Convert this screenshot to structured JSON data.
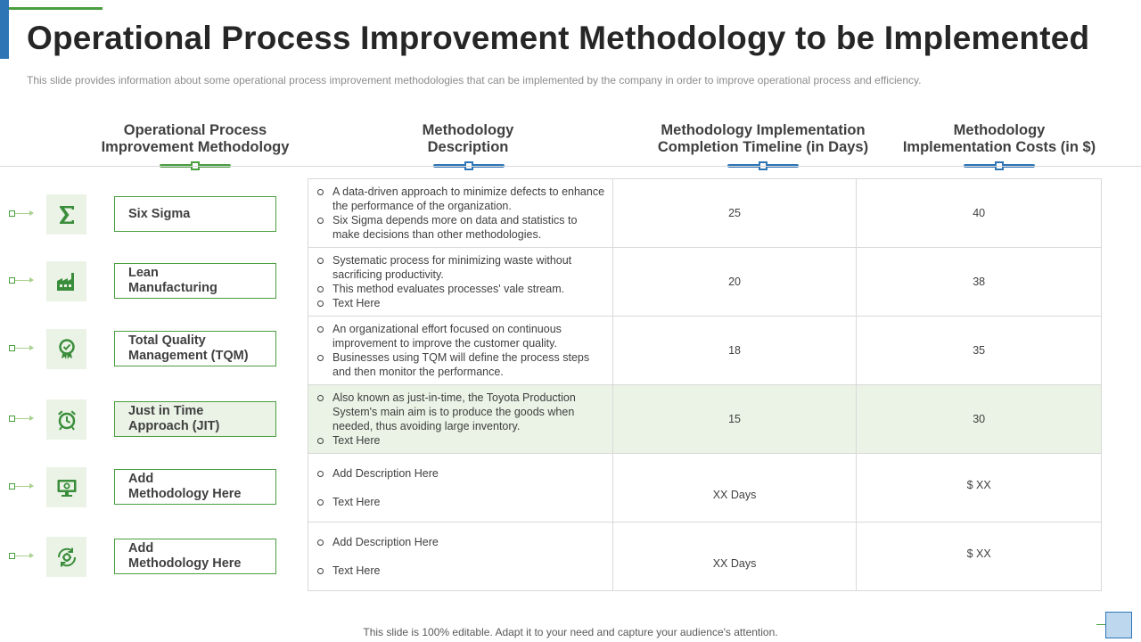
{
  "title": "Operational Process Improvement Methodology to be Implemented",
  "subtitle": "This slide provides  information  about  some operational  process improvement  methodologies that can be implemented  by the company  in order to improve  operational  process and efficiency.",
  "columns": [
    "Operational Process Improvement Methodology",
    "Methodology Description",
    "Methodology Implementation Completion Timeline (in Days)",
    "Methodology Implementation Costs  (in $)"
  ],
  "rows": [
    {
      "icon": "sigma-icon",
      "method": "Six Sigma",
      "description": [
        "A data-driven  approach to minimize defects to enhance the performance  of the organization.",
        "Six Sigma depends more on data and statistics to make decisions than other methodologies."
      ],
      "timeline": "25",
      "cost": "40"
    },
    {
      "icon": "factory-icon",
      "method": "Lean\nManufacturing",
      "description": [
        "Systematic process for minimizing waste without sacrificing productivity.",
        "This method evaluates processes' vale stream.",
        "Text Here"
      ],
      "timeline": "20",
      "cost": "38"
    },
    {
      "icon": "quality-badge-icon",
      "method": "Total Quality\nManagement (TQM)",
      "description": [
        "An organizational  effort  focused on continuous improvement  to improve  the customer quality.",
        "Businesses using TQM will define the process steps and then monitor the performance."
      ],
      "timeline": "18",
      "cost": "35"
    },
    {
      "icon": "alarm-clock-icon",
      "method": "Just in Time\nApproach (JIT)",
      "description": [
        "Also known as just-in-time, the Toyota Production System's main aim is to produce the goods when needed, thus avoiding  large inventory.",
        "Text Here"
      ],
      "timeline": "15",
      "cost": "30",
      "highlighted": true
    },
    {
      "icon": "monitor-gear-icon",
      "method": "Add\nMethodology Here",
      "description": [
        "Add Description Here",
        "Text Here"
      ],
      "timeline": "XX  Days",
      "cost": "$ XX"
    },
    {
      "icon": "gear-cycle-icon",
      "method": "Add\nMethodology Here",
      "description": [
        "Add Description Here",
        "Text Here"
      ],
      "timeline": "XX  Days",
      "cost": "$ XX"
    }
  ],
  "footer": "This slide is 100% editable. Adapt it to your need and capture your audience's attention."
}
